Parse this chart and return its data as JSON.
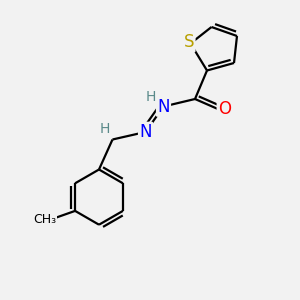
{
  "background_color": "#f2f2f2",
  "atom_colors": {
    "S": "#b8a000",
    "N": "#0000ff",
    "O": "#ff0000",
    "C": "#000000",
    "H": "#5a8a8a"
  },
  "bond_color": "#000000",
  "bond_width": 1.6,
  "font_size_atom": 11,
  "font_size_H": 10
}
